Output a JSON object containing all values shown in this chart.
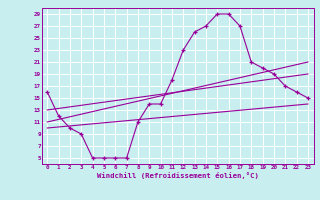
{
  "xlabel": "Windchill (Refroidissement éolien,°C)",
  "bg_color": "#c8eef0",
  "line_color": "#990099",
  "grid_color": "#ffffff",
  "x_ticks": [
    0,
    1,
    2,
    3,
    4,
    5,
    6,
    7,
    8,
    9,
    10,
    11,
    12,
    13,
    14,
    15,
    16,
    17,
    18,
    19,
    20,
    21,
    22,
    23
  ],
  "y_ticks": [
    5,
    7,
    9,
    11,
    13,
    15,
    17,
    19,
    21,
    23,
    25,
    27,
    29
  ],
  "xlim": [
    -0.5,
    23.5
  ],
  "ylim": [
    4,
    30
  ],
  "series": [
    {
      "x": [
        0,
        1,
        2,
        3,
        4,
        5,
        6,
        7,
        8,
        9,
        10,
        11,
        12,
        13,
        14,
        15,
        16,
        17,
        18,
        19,
        20,
        21,
        22,
        23
      ],
      "y": [
        16,
        12,
        10,
        9,
        5,
        5,
        5,
        5,
        11,
        14,
        14,
        18,
        23,
        26,
        27,
        29,
        29,
        27,
        21,
        20,
        19,
        17,
        16,
        15
      ],
      "has_markers": true
    },
    {
      "x": [
        0,
        23
      ],
      "y": [
        10,
        14
      ],
      "has_markers": false
    },
    {
      "x": [
        0,
        23
      ],
      "y": [
        13,
        19
      ],
      "has_markers": false
    },
    {
      "x": [
        0,
        23
      ],
      "y": [
        11,
        21
      ],
      "has_markers": false
    }
  ]
}
